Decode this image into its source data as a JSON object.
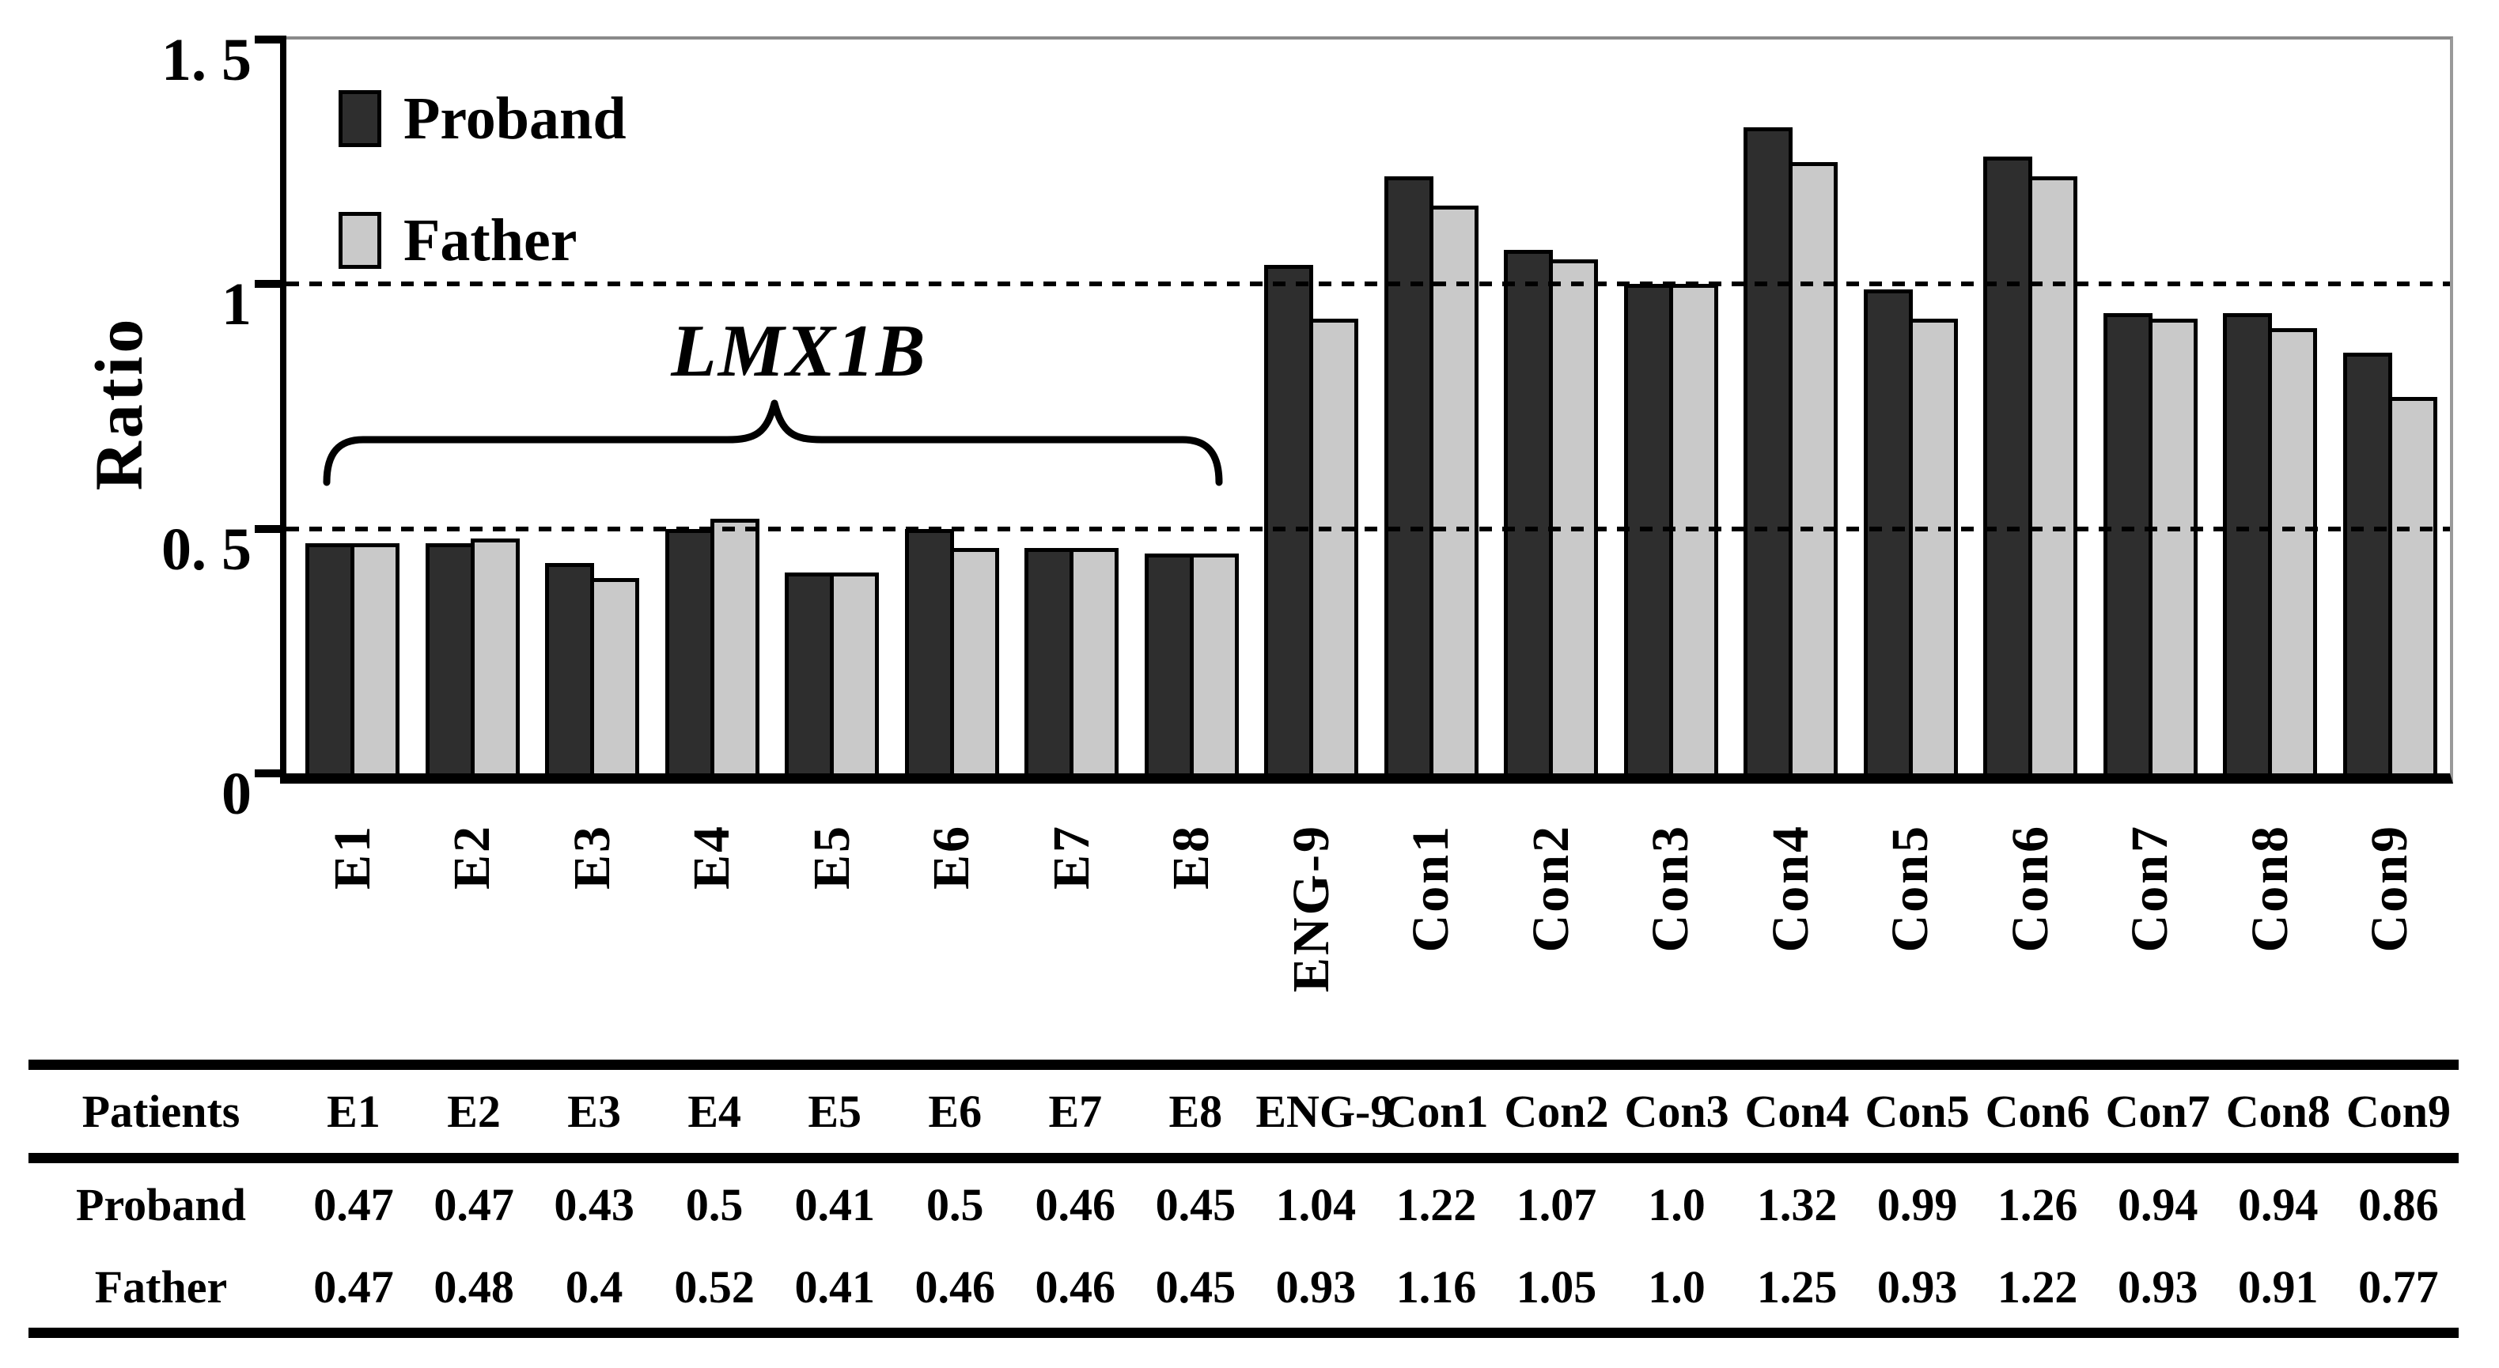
{
  "figure": {
    "ylabel": "Ratio",
    "legend": [
      {
        "label": "Proband",
        "color": "#2e2e2e"
      },
      {
        "label": "Father",
        "color": "#c9c9c9"
      }
    ],
    "yticks": [
      {
        "label": "1. 5",
        "value": 1.5
      },
      {
        "label": "1",
        "value": 1.0
      },
      {
        "label": "0. 5",
        "value": 0.5
      },
      {
        "label": "0",
        "value": 0
      }
    ]
  },
  "chart_data": {
    "type": "bar",
    "title": "",
    "xlabel": "",
    "ylabel": "Ratio",
    "ylim": [
      0,
      1.5
    ],
    "gridlines": [
      1.0,
      0.5
    ],
    "grid_style": "dashed",
    "legend_position": "top-left",
    "categories": [
      "E1",
      "E2",
      "E3",
      "E4",
      "E5",
      "E6",
      "E7",
      "E8",
      "ENG-9",
      "Con1",
      "Con2",
      "Con3",
      "Con4",
      "Con5",
      "Con6",
      "Con7",
      "Con8",
      "Con9"
    ],
    "series": [
      {
        "name": "Proband",
        "color": "#2e2e2e",
        "values": [
          0.47,
          0.47,
          0.43,
          0.5,
          0.41,
          0.5,
          0.46,
          0.45,
          1.04,
          1.22,
          1.07,
          1.0,
          1.32,
          0.99,
          1.26,
          0.94,
          0.94,
          0.86
        ]
      },
      {
        "name": "Father",
        "color": "#c9c9c9",
        "values": [
          0.47,
          0.48,
          0.4,
          0.52,
          0.41,
          0.46,
          0.46,
          0.45,
          0.93,
          1.16,
          1.05,
          1.0,
          1.25,
          0.93,
          1.22,
          0.93,
          0.91,
          0.77
        ]
      }
    ],
    "annotation": {
      "text": "LMX1B",
      "span_categories": [
        "E1",
        "E8"
      ]
    }
  },
  "table": {
    "header": [
      "Patients",
      "E1",
      "E2",
      "E3",
      "E4",
      "E5",
      "E6",
      "E7",
      "E8",
      "ENG-9",
      "Con1",
      "Con2",
      "Con3",
      "Con4",
      "Con5",
      "Con6",
      "Con7",
      "Con8",
      "Con9"
    ],
    "rows": [
      {
        "label": "Proband",
        "values": [
          "0.47",
          "0.47",
          "0.43",
          "0.5",
          "0.41",
          "0.5",
          "0.46",
          "0.45",
          "1.04",
          "1.22",
          "1.07",
          "1.0",
          "1.32",
          "0.99",
          "1.26",
          "0.94",
          "0.94",
          "0.86"
        ]
      },
      {
        "label": "Father",
        "values": [
          "0.47",
          "0.48",
          "0.4",
          "0.52",
          "0.41",
          "0.46",
          "0.46",
          "0.45",
          "0.93",
          "1.16",
          "1.05",
          "1.0",
          "1.25",
          "0.93",
          "1.22",
          "0.93",
          "0.91",
          "0.77"
        ]
      }
    ]
  }
}
